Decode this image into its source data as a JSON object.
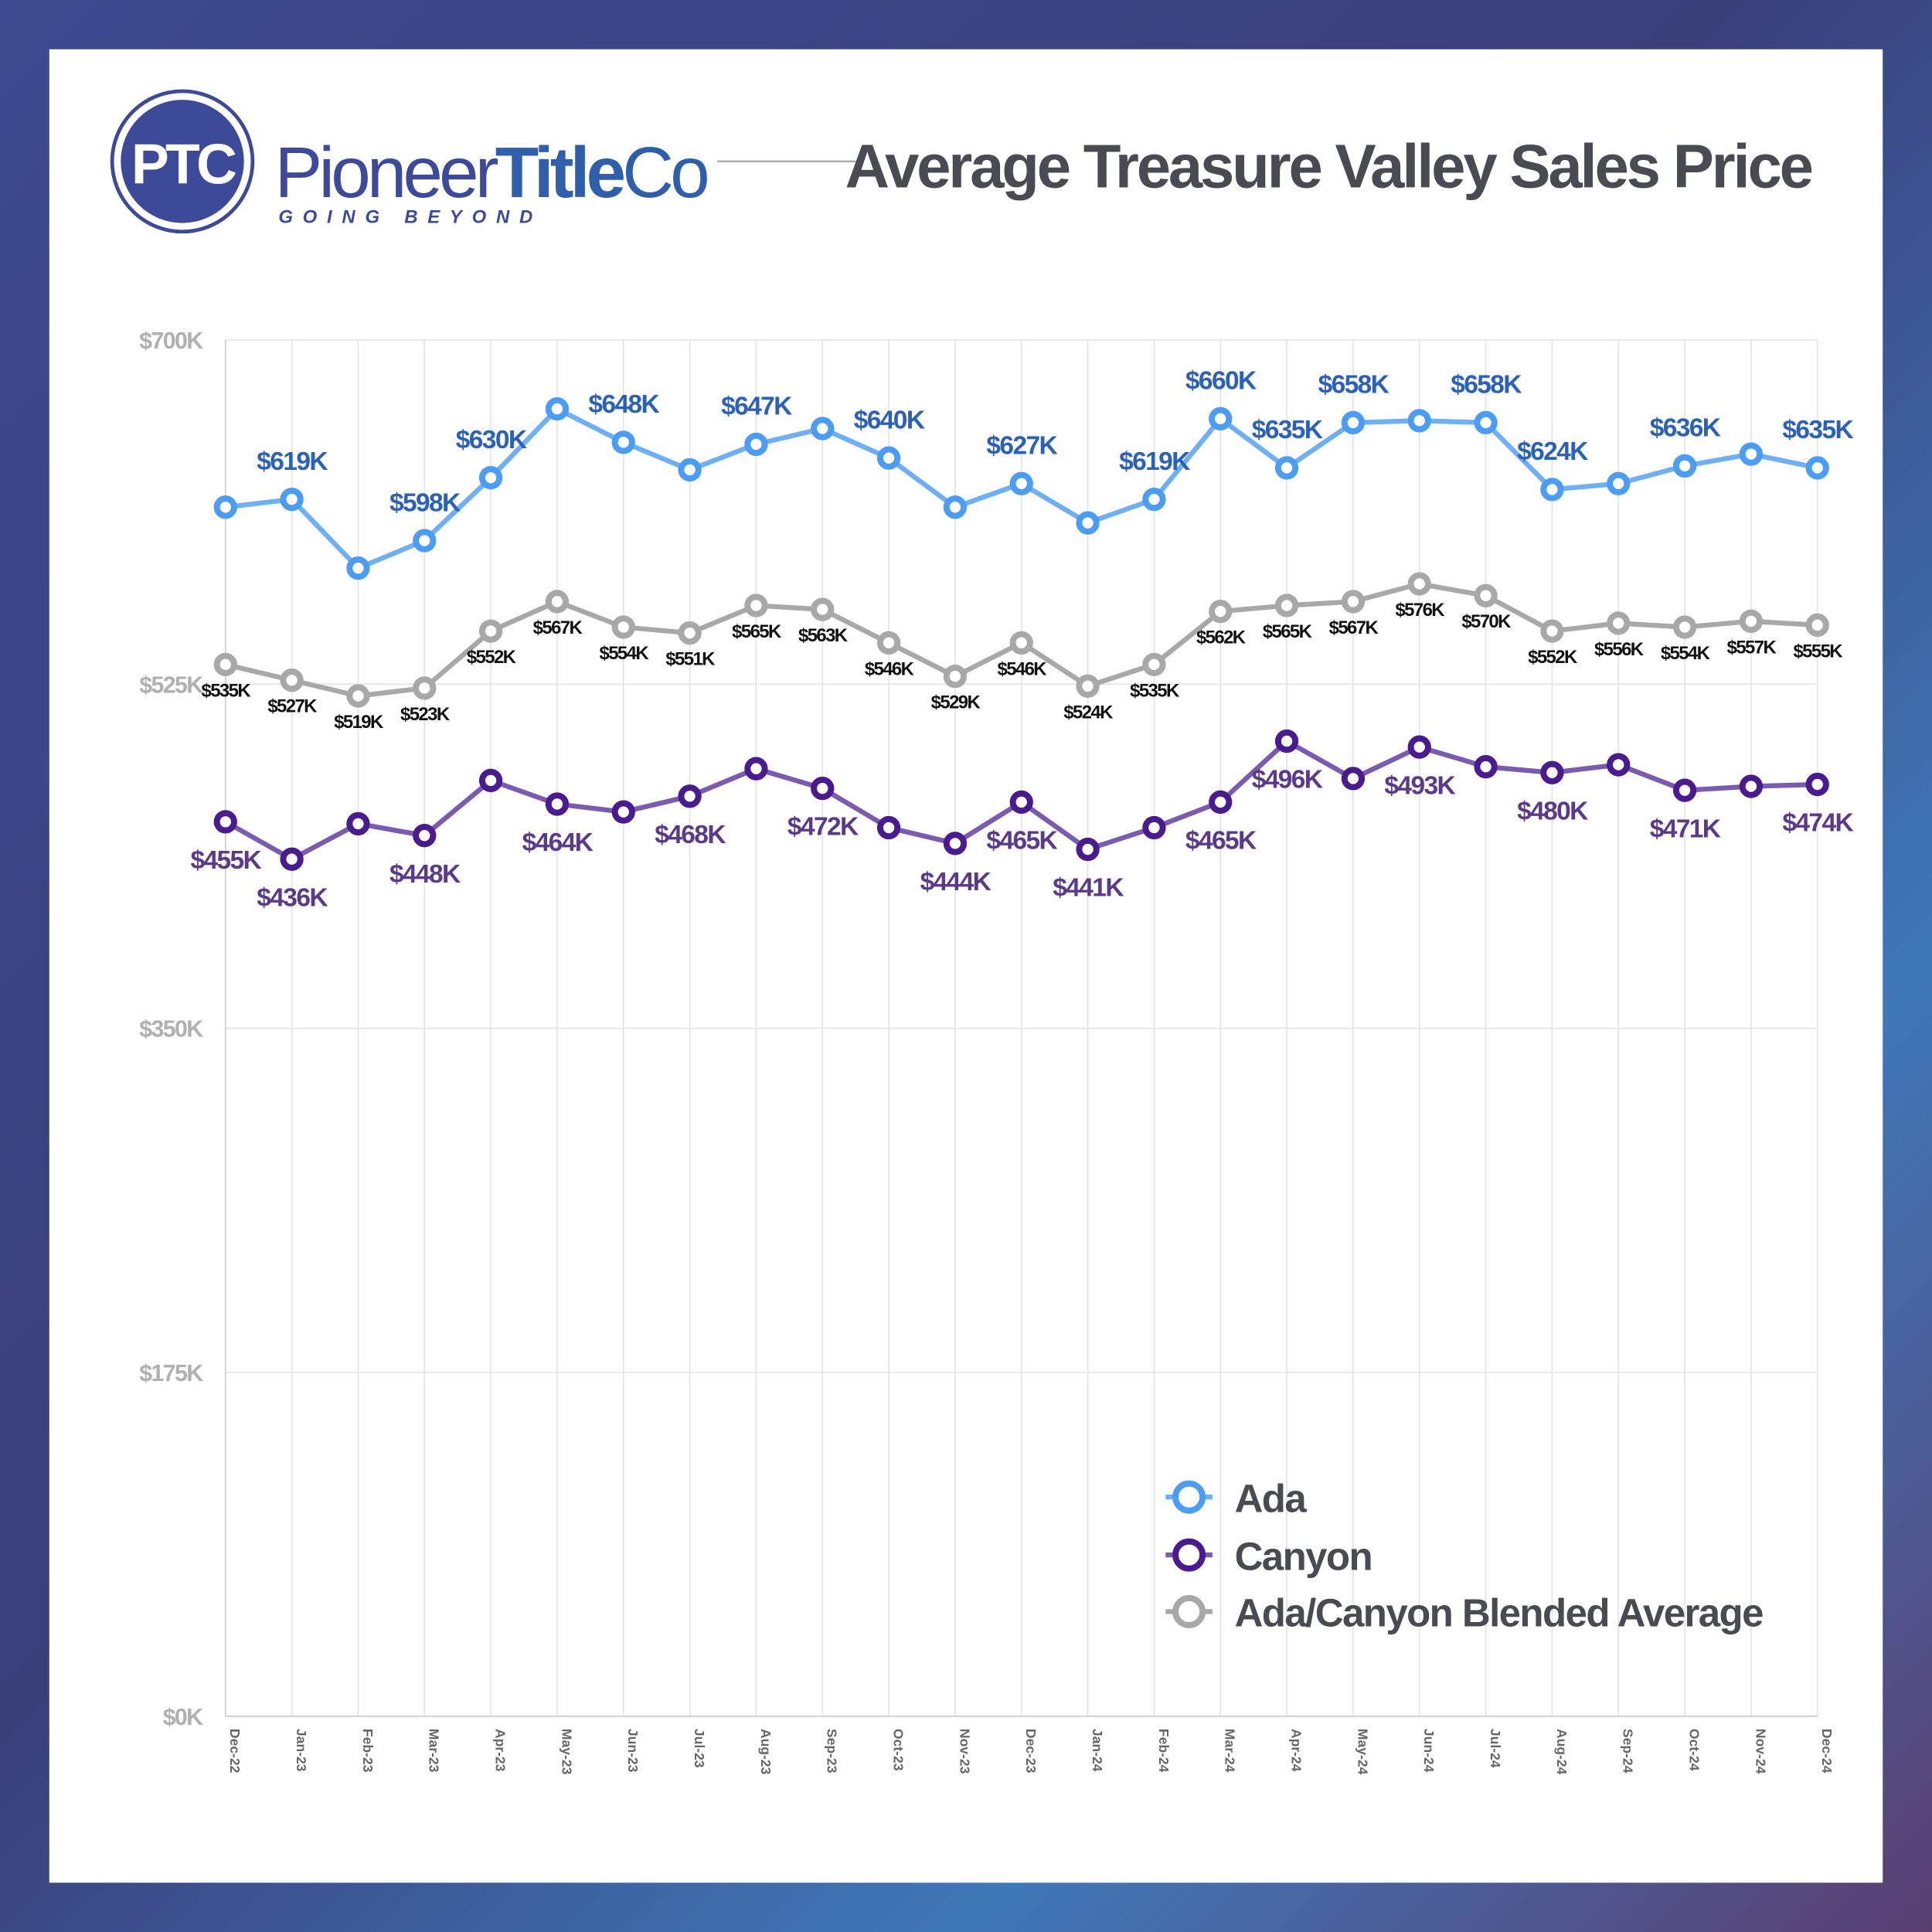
{
  "brand": {
    "logo_mark": "PTC",
    "name_regular": "Pioneer",
    "name_bold": "Title",
    "name_suffix": "Co",
    "tagline": "GOING BEYOND",
    "color": "#3d4a9a"
  },
  "chart_data": {
    "type": "line",
    "title": "Average Treasure Valley Sales Price",
    "xlabel": "",
    "ylabel": "",
    "ylim": [
      0,
      700
    ],
    "y_ticks": [
      {
        "value": 700,
        "label": "$700K"
      },
      {
        "value": 525,
        "label": "$525K"
      },
      {
        "value": 350,
        "label": "$350K"
      },
      {
        "value": 175,
        "label": "$175K"
      },
      {
        "value": 0,
        "label": "$0K"
      }
    ],
    "grid": true,
    "legend_position": "bottom-right",
    "categories": [
      "Dec-22",
      "Jan-23",
      "Feb-23",
      "Mar-23",
      "Apr-23",
      "May-23",
      "Jun-23",
      "Jul-23",
      "Aug-23",
      "Sep-23",
      "Oct-23",
      "Nov-23",
      "Dec-23",
      "Jan-24",
      "Feb-24",
      "Mar-24",
      "Apr-24",
      "May-24",
      "Jun-24",
      "Jul-24",
      "Aug-24",
      "Sep-24",
      "Oct-24",
      "Nov-24",
      "Dec-24"
    ],
    "series": [
      {
        "name": "Ada",
        "line_color": "#6fb0f5",
        "marker_color": "#4a9cf5",
        "label_color": "#2b62b8",
        "values": [
          615,
          619,
          584,
          598,
          630,
          665,
          648,
          634,
          647,
          655,
          640,
          615,
          627,
          607,
          619,
          660,
          635,
          658,
          659,
          658,
          624,
          627,
          636,
          642,
          635
        ],
        "labels": [
          null,
          "$619K",
          null,
          "$598K",
          "$630K",
          null,
          "$648K",
          null,
          "$647K",
          null,
          "$640K",
          null,
          "$627K",
          null,
          "$619K",
          "$660K",
          "$635K",
          "$658K",
          null,
          "$658K",
          "$624K",
          null,
          "$636K",
          null,
          "$635K"
        ]
      },
      {
        "name": "Canyon",
        "line_color": "#7b5bb0",
        "marker_color": "#4a1a8f",
        "label_color": "#5b3a8a",
        "values": [
          455,
          436,
          454,
          448,
          476,
          464,
          460,
          468,
          482,
          472,
          452,
          444,
          465,
          441,
          452,
          465,
          496,
          477,
          493,
          483,
          480,
          484,
          471,
          473,
          474
        ],
        "labels": [
          "$455K",
          "$436K",
          null,
          "$448K",
          null,
          "$464K",
          null,
          "$468K",
          null,
          "$472K",
          null,
          "$444K",
          "$465K",
          "$441K",
          null,
          "$465K",
          "$496K",
          null,
          "$493K",
          null,
          "$480K",
          null,
          "$471K",
          null,
          "$474K"
        ]
      },
      {
        "name": "Ada/Canyon Blended Average",
        "line_color": "#a8a8a8",
        "marker_color": "#a8a8a8",
        "label_color": "#111111",
        "values": [
          535,
          527,
          519,
          523,
          552,
          567,
          554,
          551,
          565,
          563,
          546,
          529,
          546,
          524,
          535,
          562,
          565,
          567,
          576,
          570,
          552,
          556,
          554,
          557,
          555
        ],
        "labels": [
          "$535K",
          "$527K",
          "$519K",
          "$523K",
          "$552K",
          "$567K",
          "$554K",
          "$551K",
          "$565K",
          "$563K",
          "$546K",
          "$529K",
          "$546K",
          "$524K",
          "$535K",
          "$562K",
          "$565K",
          "$567K",
          "$576K",
          "$570K",
          "$552K",
          "$556K",
          "$554K",
          "$557K",
          "$555K"
        ]
      }
    ]
  }
}
